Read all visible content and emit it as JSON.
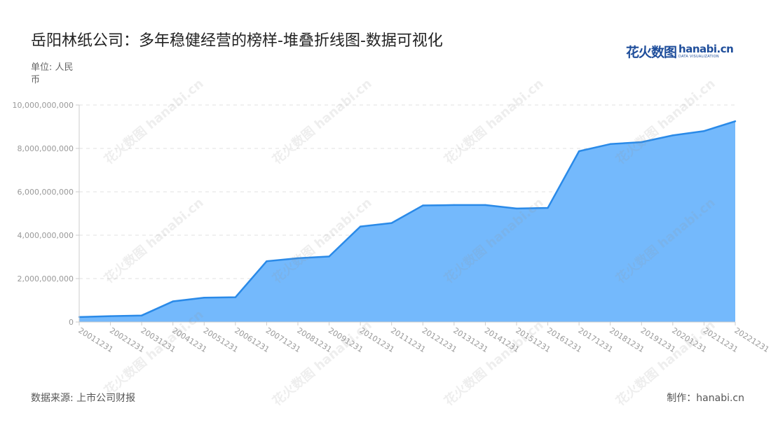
{
  "header": {
    "title": "岳阳林纸公司：多年稳健经营的榜样-堆叠折线图-数据可视化",
    "unit_label": "单位: 人民币"
  },
  "brand": {
    "cn": "花火数图",
    "en": "hanabi.cn",
    "sub": "DATA VISUALIZATION"
  },
  "footer": {
    "source": "数据来源: 上市公司财报",
    "credit": "制作：hanabi.cn"
  },
  "colors": {
    "area_fill": "#74b9fc",
    "line": "#2a8ae8",
    "grid": "#e0e0e0",
    "axis": "#cccccc",
    "tick_text": "#999999"
  },
  "chart_data": {
    "type": "area",
    "title": "岳阳林纸公司：多年稳健经营的榜样-堆叠折线图-数据可视化",
    "ylabel": "单位: 人民币",
    "ylim": [
      0,
      10000000000
    ],
    "yticks": [
      0,
      2000000000,
      4000000000,
      6000000000,
      8000000000,
      10000000000
    ],
    "ytick_labels": [
      "0",
      "2,000,000,000",
      "4,000,000,000",
      "6,000,000,000",
      "8,000,000,000",
      "10,000,000,000"
    ],
    "grid": true,
    "categories": [
      "20011231",
      "20021231",
      "20031231",
      "20041231",
      "20051231",
      "20061231",
      "20071231",
      "20081231",
      "20091231",
      "20101231",
      "20111231",
      "20121231",
      "20131231",
      "20141231",
      "20151231",
      "20161231",
      "20171231",
      "20181231",
      "20191231",
      "20201231",
      "20211231",
      "20221231"
    ],
    "series": [
      {
        "values": [
          230000000,
          270000000,
          300000000,
          950000000,
          1120000000,
          1140000000,
          2800000000,
          2940000000,
          3020000000,
          4400000000,
          4560000000,
          5370000000,
          5390000000,
          5390000000,
          5230000000,
          5260000000,
          7870000000,
          8200000000,
          8290000000,
          8600000000,
          8800000000,
          9250000000
        ]
      }
    ]
  }
}
